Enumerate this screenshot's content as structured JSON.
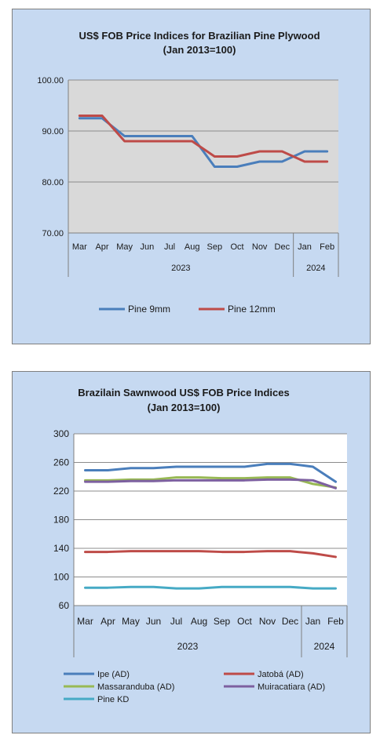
{
  "charts": [
    {
      "type": "line",
      "title_line1": "US$ FOB Price Indices for Brazilian  Pine Plywood",
      "title_line2": "(Jan 2013=100)",
      "categories": [
        "Mar",
        "Apr",
        "May",
        "Jun",
        "Jul",
        "Aug",
        "Sep",
        "Oct",
        "Nov",
        "Dec",
        "Jan",
        "Feb"
      ],
      "year_groups": [
        {
          "label": "2023",
          "count": 10
        },
        {
          "label": "2024",
          "count": 2
        }
      ],
      "ylim": [
        70,
        100
      ],
      "yticks": [
        "70.00",
        "80.00",
        "90.00",
        "100.00"
      ],
      "ytick_values": [
        70,
        80,
        90,
        100
      ],
      "grid": true,
      "legend_position": "bottom",
      "series": [
        {
          "name": "Pine 9mm",
          "color": "#4a7ebb",
          "values": [
            92.5,
            92.5,
            89,
            89,
            89,
            89,
            83,
            83,
            84,
            84,
            86,
            86
          ]
        },
        {
          "name": "Pine 12mm",
          "color": "#be4b48",
          "values": [
            93,
            93,
            88,
            88,
            88,
            88,
            85,
            85,
            86,
            86,
            84,
            84
          ]
        }
      ]
    },
    {
      "type": "line",
      "title_line1": "Brazilain Sawnwood US$ FOB Price Indices",
      "title_line2": "(Jan 2013=100)",
      "categories": [
        "Mar",
        "Apr",
        "May",
        "Jun",
        "Jul",
        "Aug",
        "Sep",
        "Oct",
        "Nov",
        "Dec",
        "Jan",
        "Feb"
      ],
      "year_groups": [
        {
          "label": "2023",
          "count": 10
        },
        {
          "label": "2024",
          "count": 2
        }
      ],
      "ylim": [
        60,
        300
      ],
      "yticks": [
        "60",
        "100",
        "140",
        "180",
        "220",
        "260",
        "300"
      ],
      "ytick_values": [
        60,
        100,
        140,
        180,
        220,
        260,
        300
      ],
      "grid": true,
      "legend_position": "bottom",
      "series": [
        {
          "name": "Ipe (AD)",
          "color": "#4a7ebb",
          "values": [
            249,
            249,
            252,
            252,
            254,
            254,
            254,
            254,
            258,
            258,
            254,
            233
          ]
        },
        {
          "name": "Jatobá (AD)",
          "color": "#be4b48",
          "values": [
            135,
            135,
            136,
            136,
            136,
            136,
            135,
            135,
            136,
            136,
            133,
            128
          ]
        },
        {
          "name": "Massaranduba (AD)",
          "color": "#98b954",
          "values": [
            235,
            235,
            236,
            236,
            239,
            239,
            238,
            238,
            239,
            239,
            230,
            225
          ]
        },
        {
          "name": "Muiracatiara (AD)",
          "color": "#7d60a0",
          "values": [
            233,
            233,
            234,
            234,
            235,
            235,
            235,
            235,
            236,
            236,
            235,
            224
          ]
        },
        {
          "name": "Pine KD",
          "color": "#46aac5",
          "values": [
            85,
            85,
            86,
            86,
            84,
            84,
            86,
            86,
            86,
            86,
            84,
            84
          ]
        }
      ]
    }
  ],
  "chart_data": [
    {
      "type": "line",
      "title": "US$ FOB Price Indices for Brazilian  Pine Plywood (Jan 2013=100)",
      "categories": [
        "Mar",
        "Apr",
        "May",
        "Jun",
        "Jul",
        "Aug",
        "Sep",
        "Oct",
        "Nov",
        "Dec",
        "Jan",
        "Feb"
      ],
      "series": [
        {
          "name": "Pine 9mm",
          "values": [
            92.5,
            92.5,
            89,
            89,
            89,
            89,
            83,
            83,
            84,
            84,
            86,
            86
          ]
        },
        {
          "name": "Pine 12mm",
          "values": [
            93,
            93,
            88,
            88,
            88,
            88,
            85,
            85,
            86,
            86,
            84,
            84
          ]
        }
      ],
      "ylim": [
        70,
        100
      ]
    },
    {
      "type": "line",
      "title": "Brazilain Sawnwood US$ FOB Price Indices (Jan 2013=100)",
      "categories": [
        "Mar",
        "Apr",
        "May",
        "Jun",
        "Jul",
        "Aug",
        "Sep",
        "Oct",
        "Nov",
        "Dec",
        "Jan",
        "Feb"
      ],
      "series": [
        {
          "name": "Ipe (AD)",
          "values": [
            249,
            249,
            252,
            252,
            254,
            254,
            254,
            254,
            258,
            258,
            254,
            233
          ]
        },
        {
          "name": "Jatobá (AD)",
          "values": [
            135,
            135,
            136,
            136,
            136,
            136,
            135,
            135,
            136,
            136,
            133,
            128
          ]
        },
        {
          "name": "Massaranduba (AD)",
          "values": [
            235,
            235,
            236,
            236,
            239,
            239,
            238,
            238,
            239,
            239,
            230,
            225
          ]
        },
        {
          "name": "Muiracatiara (AD)",
          "values": [
            233,
            233,
            234,
            234,
            235,
            235,
            235,
            235,
            236,
            236,
            235,
            224
          ]
        },
        {
          "name": "Pine KD",
          "values": [
            85,
            85,
            86,
            86,
            84,
            84,
            86,
            86,
            86,
            86,
            84,
            84
          ]
        }
      ],
      "ylim": [
        60,
        300
      ]
    }
  ]
}
